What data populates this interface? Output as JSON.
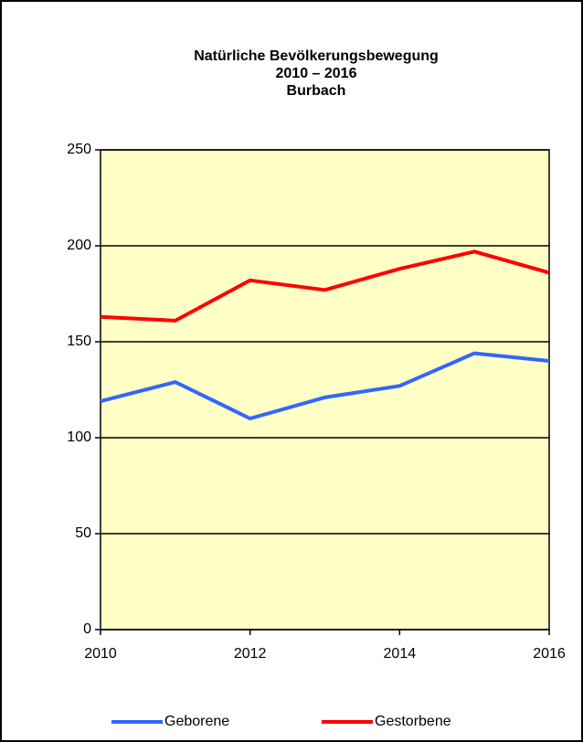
{
  "chart_data": {
    "type": "line",
    "title": [
      "Natürliche Bevölkerungsbewegung",
      "2010 – 2016",
      "Burbach"
    ],
    "x": [
      2010,
      2011,
      2012,
      2013,
      2014,
      2015,
      2016
    ],
    "series": [
      {
        "name": "Geborene",
        "color": "#3366ff",
        "values": [
          119,
          129,
          110,
          121,
          127,
          144,
          140
        ]
      },
      {
        "name": "Gestorbene",
        "color": "#ff0000",
        "values": [
          163,
          161,
          182,
          177,
          188,
          197,
          186
        ]
      }
    ],
    "xlim": [
      2010,
      2016
    ],
    "xticks": [
      2010,
      2012,
      2014,
      2016
    ],
    "ylim": [
      0,
      250
    ],
    "yticks": [
      0,
      50,
      100,
      150,
      200,
      250
    ],
    "grid": true,
    "background": "#ffffc6",
    "legend": "bottom"
  }
}
